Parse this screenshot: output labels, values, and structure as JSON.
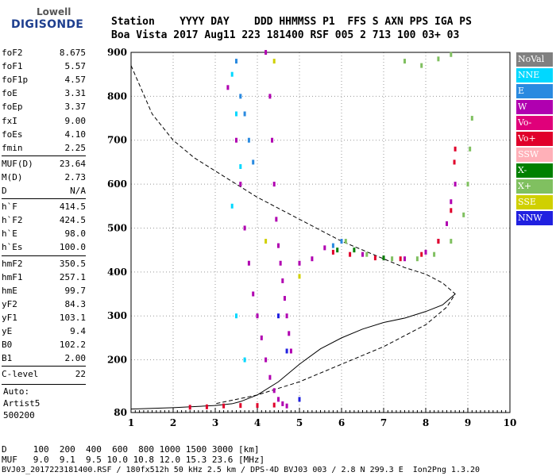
{
  "logo": {
    "line1": "Lowell",
    "line2": "DIGISONDE"
  },
  "header": {
    "row1": "Station    YYYY DAY    DDD HHMMSS P1  FFS S AXN PPS IGA PS",
    "row2": "Boa Vista 2017 Aug11 223 181400 RSF 005 2 713 100 03+ 03"
  },
  "params_group1": [
    {
      "k": "foF2",
      "v": "8.675"
    },
    {
      "k": "foF1",
      "v": "5.57"
    },
    {
      "k": "foF1p",
      "v": "4.57"
    },
    {
      "k": "foE",
      "v": "3.31"
    },
    {
      "k": "foEp",
      "v": "3.37"
    },
    {
      "k": "fxI",
      "v": "9.00"
    },
    {
      "k": "foEs",
      "v": "4.10"
    },
    {
      "k": "fmin",
      "v": "2.25"
    }
  ],
  "params_group2": [
    {
      "k": "MUF(D)",
      "v": "23.64"
    },
    {
      "k": "M(D)",
      "v": "2.73"
    },
    {
      "k": "D",
      "v": "N/A"
    }
  ],
  "params_group3": [
    {
      "k": "h`F",
      "v": "414.5"
    },
    {
      "k": "h`F2",
      "v": "424.5"
    },
    {
      "k": "h`E",
      "v": "98.0"
    },
    {
      "k": "h`Es",
      "v": "100.0"
    }
  ],
  "params_group4": [
    {
      "k": "hmF2",
      "v": "350.5"
    },
    {
      "k": "hmF1",
      "v": "257.1"
    },
    {
      "k": "hmE",
      "v": "99.7"
    },
    {
      "k": "yF2",
      "v": "84.3"
    },
    {
      "k": "yF1",
      "v": "103.1"
    },
    {
      "k": "yE",
      "v": "9.4"
    },
    {
      "k": "B0",
      "v": "102.2"
    },
    {
      "k": "B1",
      "v": "2.00"
    }
  ],
  "params_group5": [
    {
      "k": "C-level",
      "v": "22"
    }
  ],
  "auto": {
    "line1": "Auto:",
    "line2": "Artist5",
    "line3": "500200"
  },
  "legend": [
    {
      "label": "NoVal",
      "color": "#808080"
    },
    {
      "label": "NNE",
      "color": "#00d8ff"
    },
    {
      "label": "E",
      "color": "#2a8ae0"
    },
    {
      "label": "W",
      "color": "#b000b0"
    },
    {
      "label": "Vo-",
      "color": "#e0007a"
    },
    {
      "label": "Vo+",
      "color": "#e0002a"
    },
    {
      "label": "SSW",
      "color": "#ffb0b8"
    },
    {
      "label": "X-",
      "color": "#008000"
    },
    {
      "label": "X+",
      "color": "#80c060"
    },
    {
      "label": "SSE",
      "color": "#d0d000"
    },
    {
      "label": "NNW",
      "color": "#2020e0"
    }
  ],
  "footer": {
    "row1": "D     100  200  400  600  800 1000 1500 3000 [km]",
    "row2": "MUF   9.0  9.1  9.5 10.0 10.8 12.0 15.3 23.6 [MHz]",
    "row3": "BVJ03_2017223181400.RSF / 180fx512h 50 kHz 2.5 km / DPS-4D BVJ03 003 / 2.8 N 299.3 E  Ion2Png 1.3.20"
  },
  "chart_data": {
    "type": "scatter",
    "xlim": [
      1,
      10
    ],
    "ylim": [
      80,
      900
    ],
    "x_ticks": [
      1,
      2,
      3,
      4,
      5,
      6,
      7,
      8,
      9,
      10
    ],
    "y_ticks": [
      80,
      200,
      300,
      400,
      500,
      600,
      700,
      800,
      900
    ],
    "grid": true,
    "series": [
      {
        "name": "W",
        "color": "#b000b0",
        "points": [
          [
            3.3,
            820
          ],
          [
            3.5,
            700
          ],
          [
            3.6,
            600
          ],
          [
            3.7,
            500
          ],
          [
            3.8,
            420
          ],
          [
            3.9,
            350
          ],
          [
            4.0,
            300
          ],
          [
            4.1,
            250
          ],
          [
            4.2,
            200
          ],
          [
            4.3,
            160
          ],
          [
            4.4,
            130
          ],
          [
            4.5,
            110
          ],
          [
            4.6,
            100
          ],
          [
            4.7,
            95
          ],
          [
            4.2,
            900
          ],
          [
            4.3,
            800
          ],
          [
            4.35,
            700
          ],
          [
            4.4,
            600
          ],
          [
            4.45,
            520
          ],
          [
            4.5,
            460
          ],
          [
            4.55,
            420
          ],
          [
            4.6,
            380
          ],
          [
            4.65,
            340
          ],
          [
            4.7,
            300
          ],
          [
            4.75,
            260
          ],
          [
            4.8,
            220
          ],
          [
            5.0,
            420
          ],
          [
            5.3,
            430
          ],
          [
            5.6,
            455
          ],
          [
            6.0,
            470
          ],
          [
            6.5,
            440
          ],
          [
            7.0,
            432
          ],
          [
            7.5,
            430
          ],
          [
            8.0,
            445
          ],
          [
            8.3,
            470
          ],
          [
            8.5,
            510
          ],
          [
            8.6,
            560
          ],
          [
            8.7,
            600
          ]
        ]
      },
      {
        "name": "Vo+",
        "color": "#e0002a",
        "points": [
          [
            2.4,
            92
          ],
          [
            2.8,
            93
          ],
          [
            3.2,
            95
          ],
          [
            3.6,
            96
          ],
          [
            4.0,
            96
          ],
          [
            4.4,
            97
          ],
          [
            5.8,
            445
          ],
          [
            6.2,
            440
          ],
          [
            6.8,
            432
          ],
          [
            7.4,
            430
          ],
          [
            7.9,
            440
          ],
          [
            8.3,
            470
          ],
          [
            8.6,
            540
          ],
          [
            8.68,
            650
          ],
          [
            8.7,
            680
          ]
        ]
      },
      {
        "name": "X+",
        "color": "#80c060",
        "points": [
          [
            6.1,
            470
          ],
          [
            6.6,
            440
          ],
          [
            7.2,
            430
          ],
          [
            7.8,
            430
          ],
          [
            8.2,
            440
          ],
          [
            8.6,
            470
          ],
          [
            8.9,
            530
          ],
          [
            9.0,
            600
          ],
          [
            9.05,
            680
          ],
          [
            9.1,
            750
          ],
          [
            7.5,
            880
          ],
          [
            7.9,
            870
          ],
          [
            8.3,
            885
          ],
          [
            8.6,
            895
          ]
        ]
      },
      {
        "name": "E",
        "color": "#2a8ae0",
        "points": [
          [
            3.5,
            880
          ],
          [
            3.6,
            800
          ],
          [
            3.7,
            760
          ],
          [
            3.8,
            700
          ],
          [
            3.9,
            650
          ],
          [
            5.8,
            460
          ],
          [
            6.0,
            470
          ]
        ]
      },
      {
        "name": "NNE",
        "color": "#00d8ff",
        "points": [
          [
            3.4,
            850
          ],
          [
            3.5,
            760
          ],
          [
            3.6,
            640
          ],
          [
            3.4,
            550
          ],
          [
            3.5,
            300
          ],
          [
            3.7,
            200
          ]
        ]
      },
      {
        "name": "X-",
        "color": "#008000",
        "points": [
          [
            5.9,
            450
          ],
          [
            6.3,
            450
          ],
          [
            7.0,
            432
          ]
        ]
      },
      {
        "name": "SSE",
        "color": "#d0d000",
        "points": [
          [
            4.4,
            880
          ],
          [
            5.0,
            390
          ],
          [
            4.2,
            470
          ]
        ]
      },
      {
        "name": "NNW",
        "color": "#2020e0",
        "points": [
          [
            4.7,
            220
          ],
          [
            4.5,
            300
          ],
          [
            5.0,
            110
          ]
        ]
      }
    ],
    "profile_curve": [
      [
        1,
        88
      ],
      [
        2,
        91
      ],
      [
        3,
        96
      ],
      [
        3.4,
        100
      ],
      [
        3.6,
        105
      ],
      [
        4.0,
        120
      ],
      [
        4.5,
        150
      ],
      [
        5.0,
        190
      ],
      [
        5.5,
        225
      ],
      [
        6.0,
        250
      ],
      [
        6.5,
        270
      ],
      [
        7.0,
        285
      ],
      [
        7.5,
        295
      ],
      [
        8.0,
        310
      ],
      [
        8.4,
        325
      ],
      [
        8.7,
        350
      ]
    ],
    "virtual_curve": [
      [
        1,
        870
      ],
      [
        1.5,
        760
      ],
      [
        2.0,
        700
      ],
      [
        2.5,
        660
      ],
      [
        3.0,
        630
      ],
      [
        3.5,
        600
      ],
      [
        4.0,
        570
      ],
      [
        4.5,
        545
      ],
      [
        5.0,
        520
      ],
      [
        5.5,
        495
      ],
      [
        6.0,
        470
      ],
      [
        6.5,
        450
      ],
      [
        7.0,
        430
      ],
      [
        7.5,
        410
      ],
      [
        8.0,
        395
      ],
      [
        8.4,
        375
      ],
      [
        8.7,
        350
      ],
      [
        8.5,
        320
      ],
      [
        8.0,
        280
      ],
      [
        7.0,
        230
      ],
      [
        6.0,
        190
      ],
      [
        5.0,
        150
      ],
      [
        4.0,
        120
      ],
      [
        3.0,
        100
      ]
    ]
  }
}
